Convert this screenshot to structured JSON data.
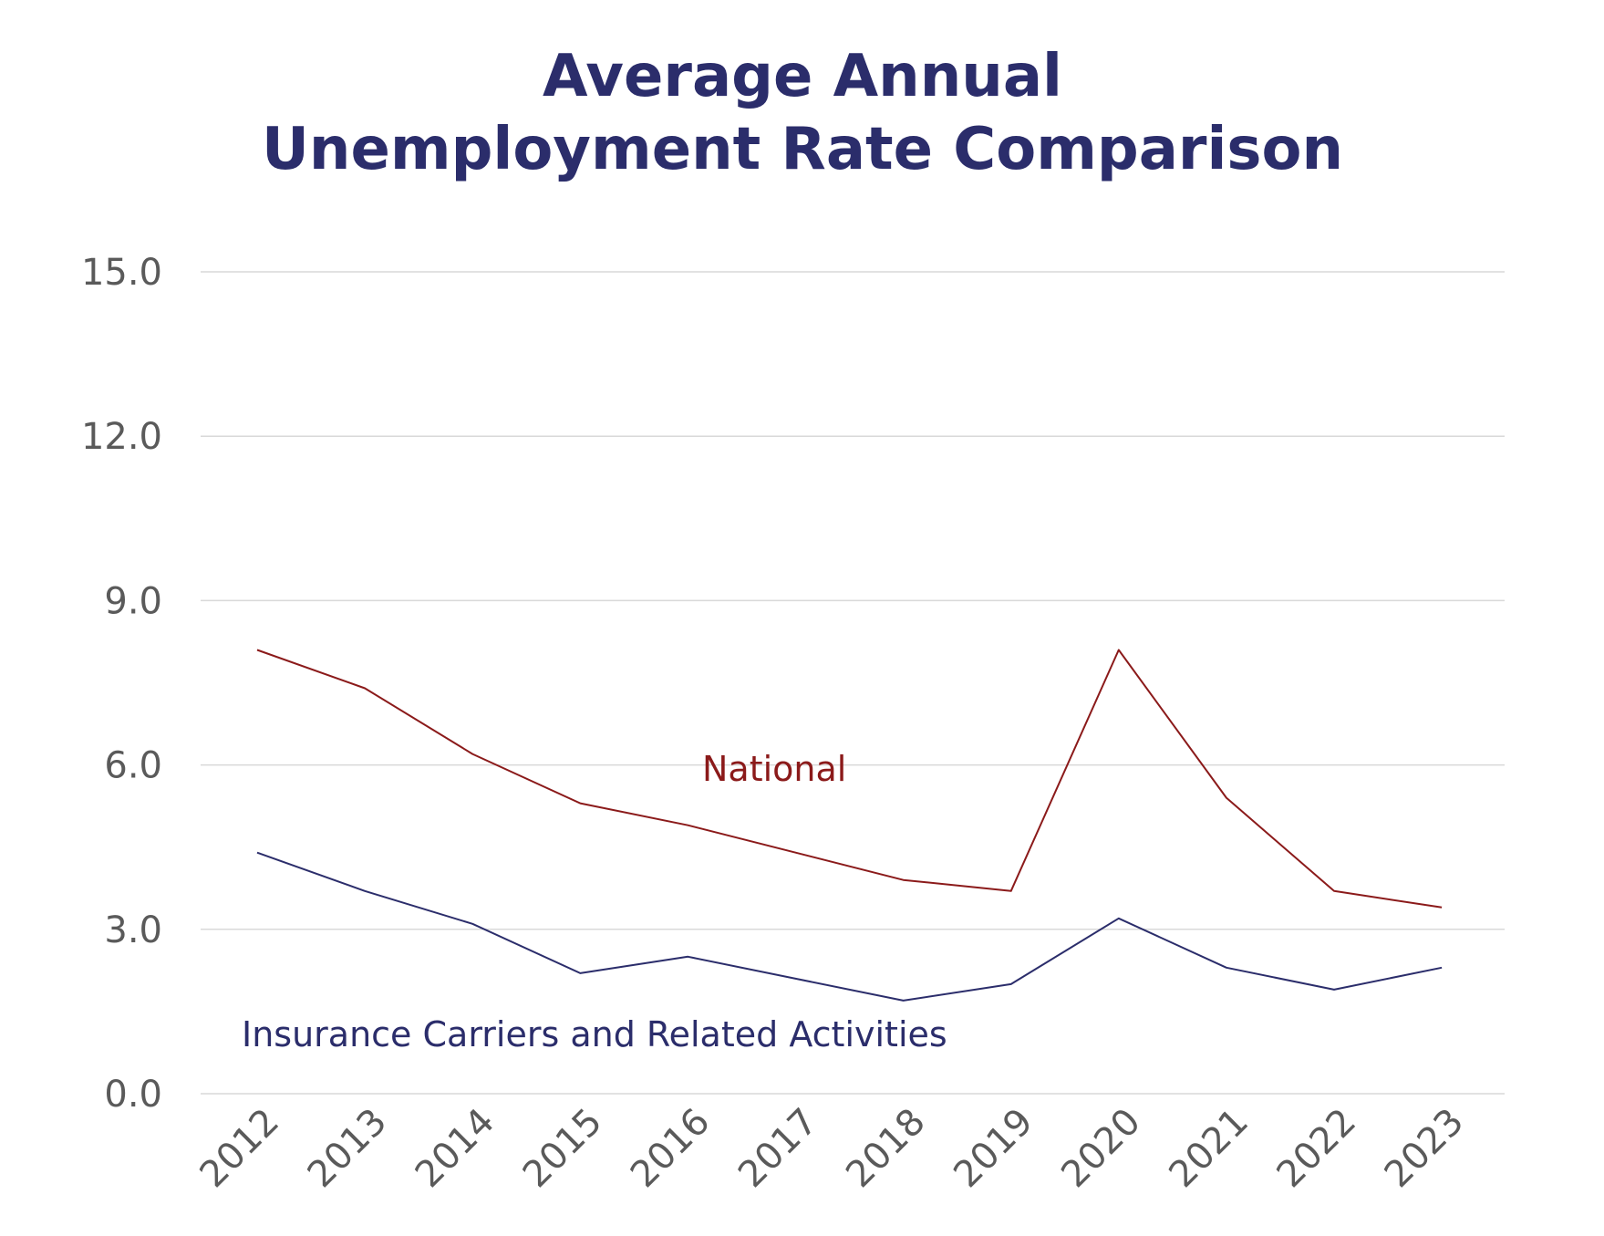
{
  "chart_data": {
    "type": "line",
    "title": [
      "Average Annual",
      "Unemployment Rate Comparison"
    ],
    "xlabel": "",
    "ylabel": "",
    "categories": [
      "2012",
      "2013",
      "2014",
      "2015",
      "2016",
      "2017",
      "2018",
      "2019",
      "2020",
      "2021",
      "2022",
      "2023"
    ],
    "ylim": [
      0,
      15
    ],
    "yticks": [
      "0.0",
      "3.0",
      "6.0",
      "9.0",
      "12.0",
      "15.0"
    ],
    "ytick_values": [
      0,
      3,
      6,
      9,
      12,
      15
    ],
    "grid": true,
    "series": [
      {
        "name": "National",
        "color": "#8b1a1a",
        "values": [
          8.1,
          7.4,
          6.2,
          5.3,
          4.9,
          4.4,
          3.9,
          3.7,
          8.1,
          5.4,
          3.7,
          3.4
        ]
      },
      {
        "name": "Insurance Carriers and Related Activities",
        "color": "#2b2d6b",
        "values": [
          4.4,
          3.7,
          3.1,
          2.2,
          2.5,
          2.1,
          1.7,
          2.0,
          3.2,
          2.3,
          1.9,
          2.3
        ]
      }
    ]
  }
}
